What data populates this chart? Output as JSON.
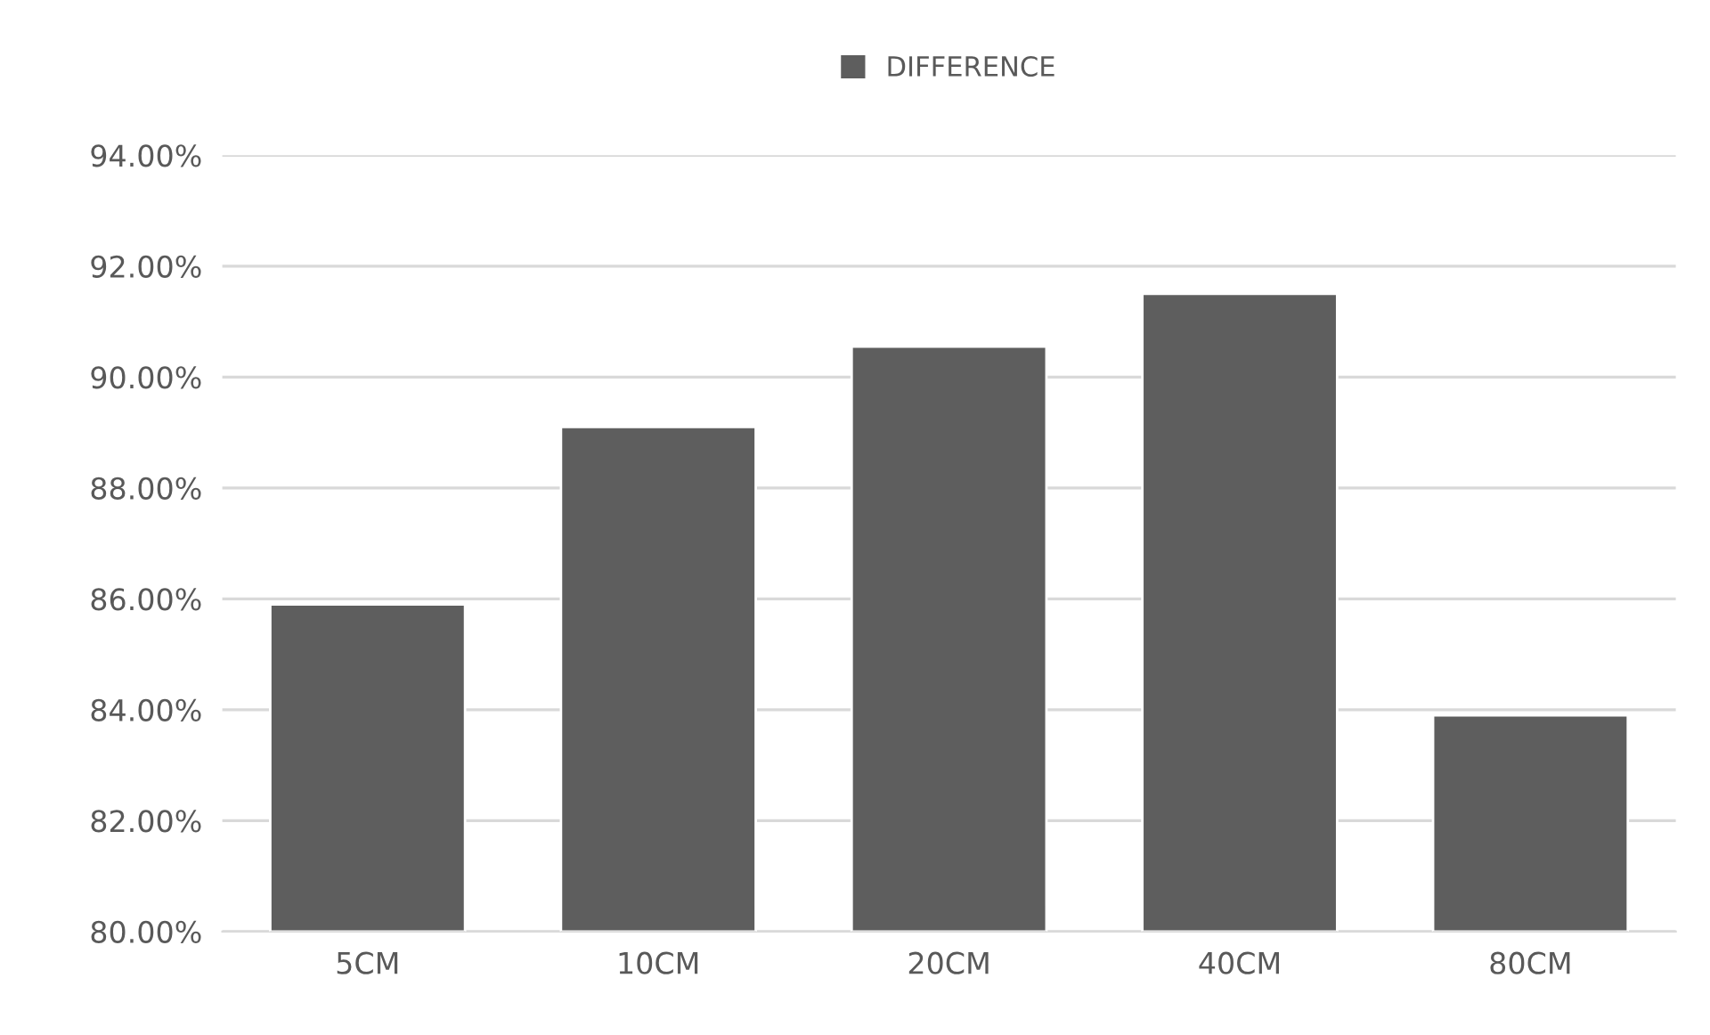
{
  "chart_data": {
    "type": "bar",
    "categories": [
      "5CM",
      "10CM",
      "20CM",
      "40CM",
      "80CM"
    ],
    "series": [
      {
        "name": "DIFFERENCE",
        "color": "#5e5e5e",
        "values": [
          85.9,
          89.1,
          90.55,
          91.5,
          83.9
        ]
      }
    ],
    "ylim": [
      80,
      94
    ],
    "yticks": [
      {
        "value": 80,
        "label": "80.00%"
      },
      {
        "value": 82,
        "label": "82.00%"
      },
      {
        "value": 84,
        "label": "84.00%"
      },
      {
        "value": 86,
        "label": "86.00%"
      },
      {
        "value": 88,
        "label": "88.00%"
      },
      {
        "value": 90,
        "label": "90.00%"
      },
      {
        "value": 92,
        "label": "92.00%"
      },
      {
        "value": 94,
        "label": "94.00%"
      }
    ],
    "grid": "y",
    "legend": "top"
  }
}
